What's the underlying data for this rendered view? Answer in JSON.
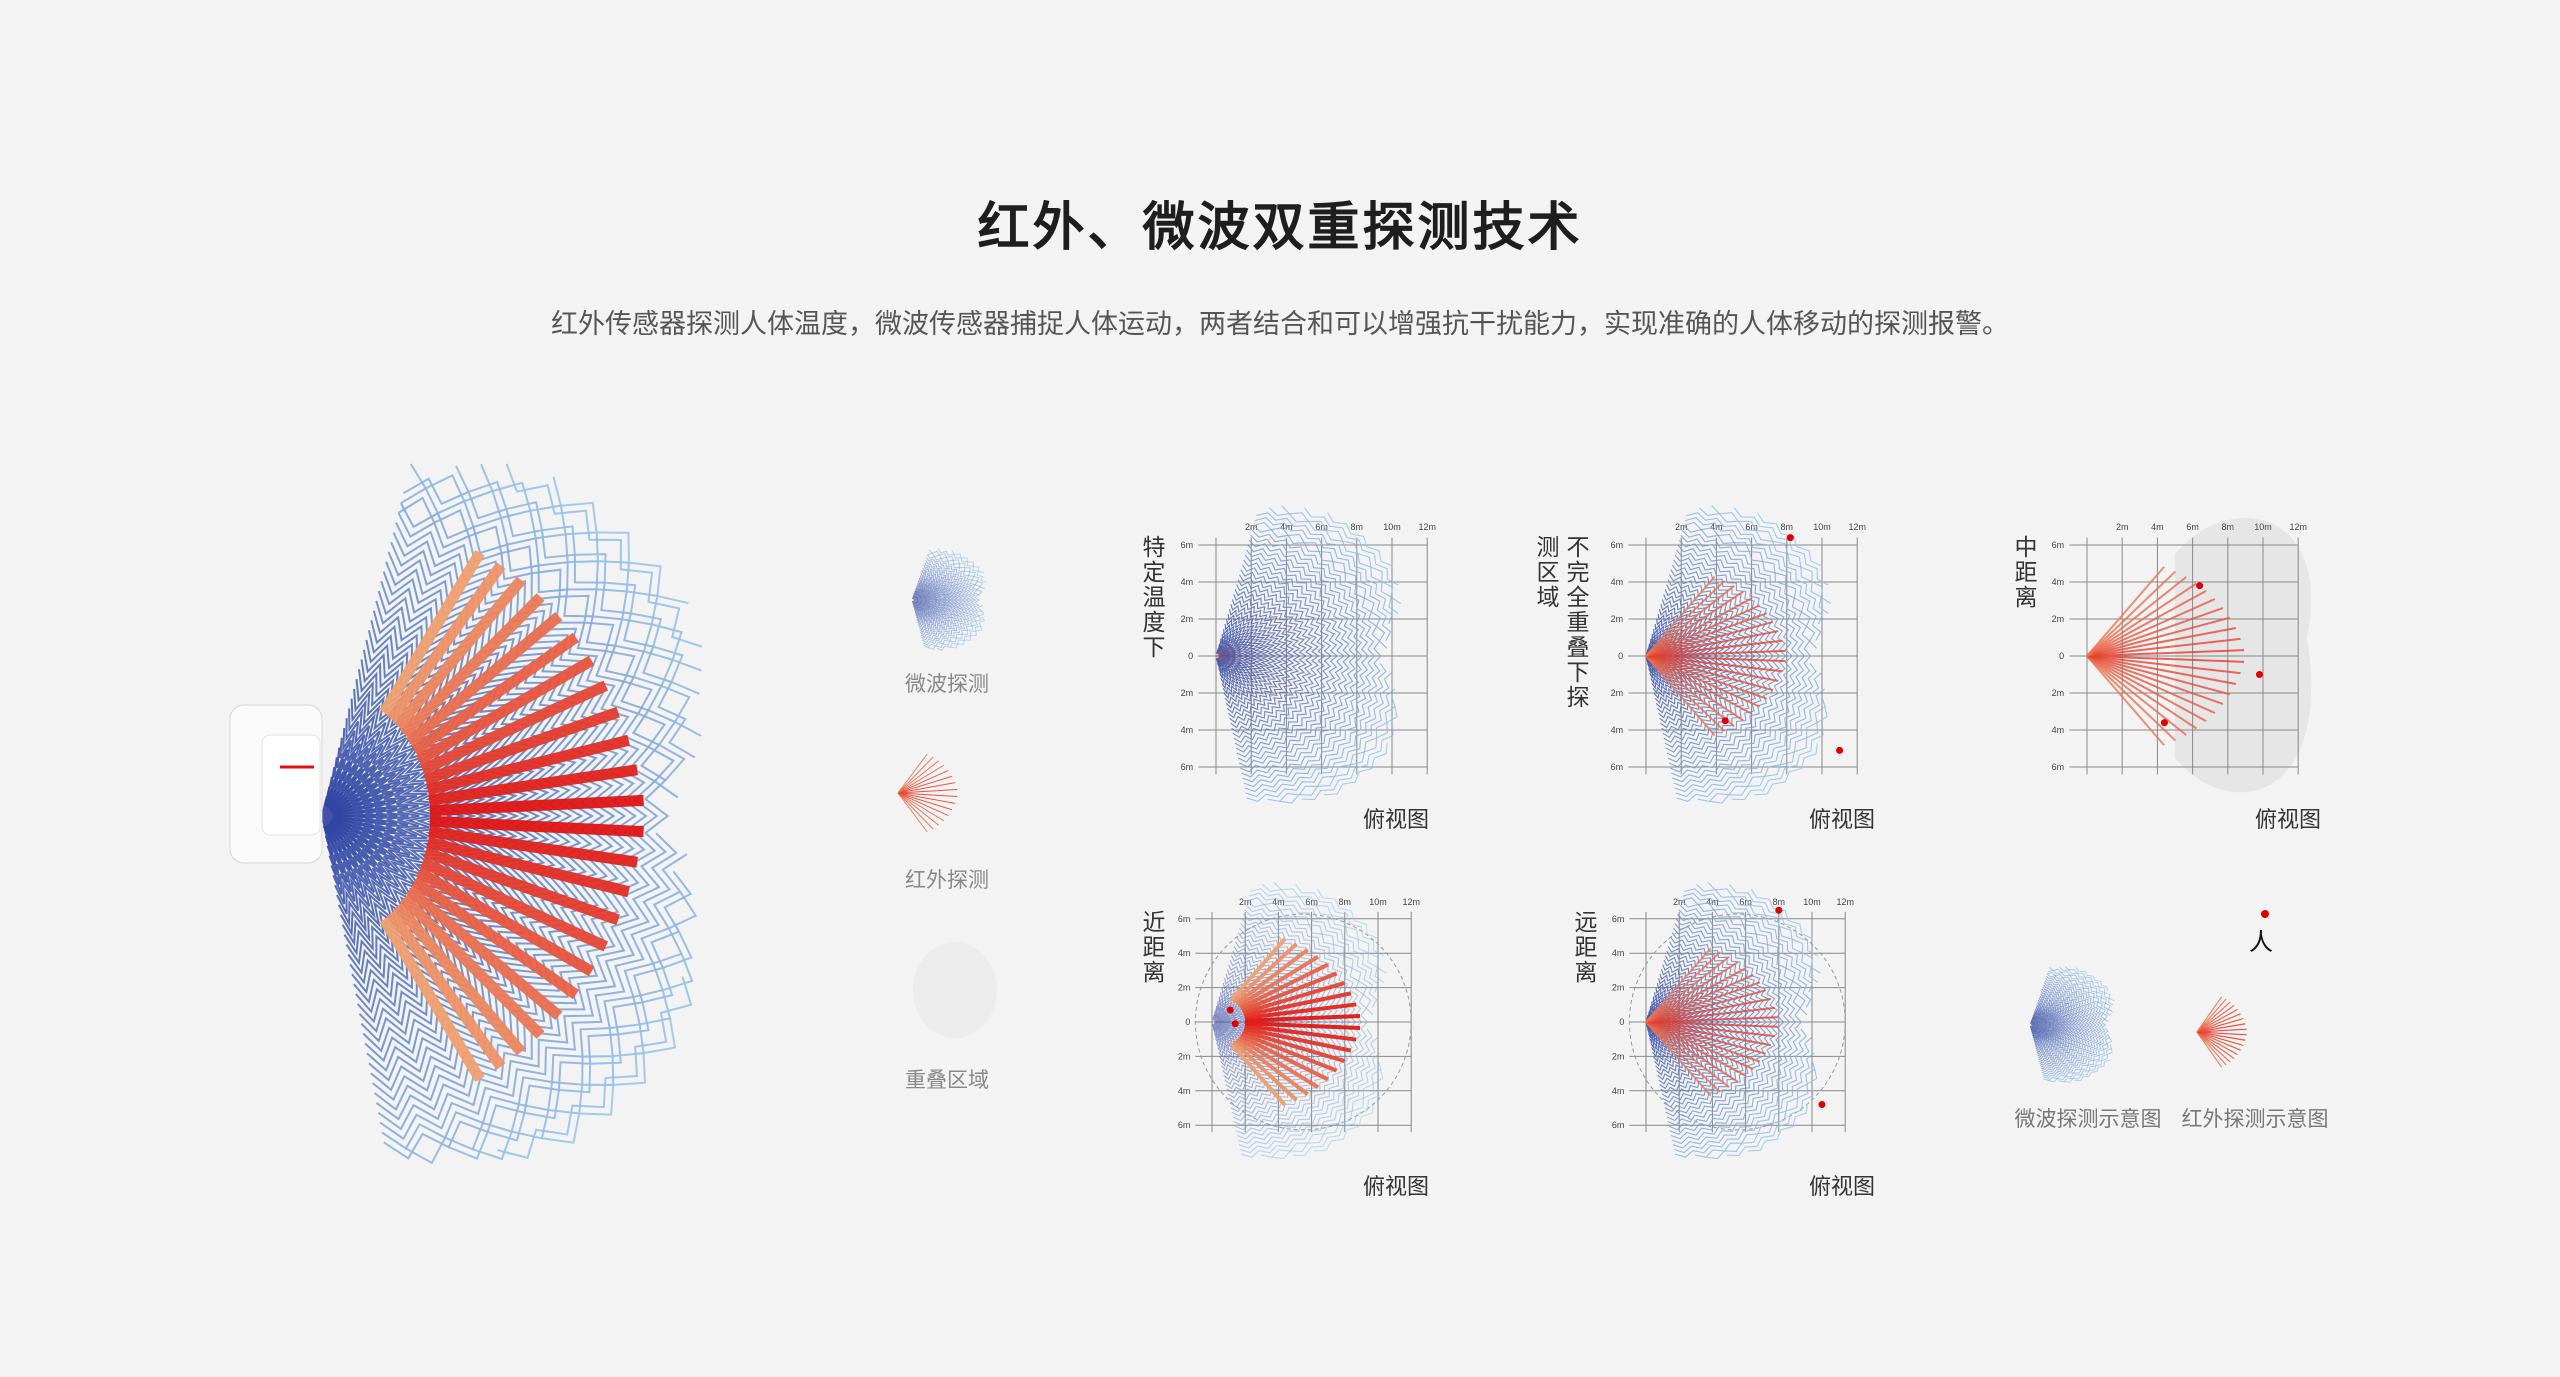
{
  "title": "红外、微波双重探测技术",
  "subtitle": "红外传感器探测人体温度，微波传感器捕捉人体运动，两者结合和可以增强抗干扰能力，实现准确的人体移动的探测报警。",
  "colors": {
    "microwave_dark": "#2a3d9e",
    "microwave_light": "#9cc8ee",
    "infrared_red": "#e01010",
    "infrared_orange": "#f0a070",
    "person": "#e00000",
    "background": "#f3f3f3"
  },
  "legend": [
    {
      "label": "微波探测",
      "icon": "microwave-fan-icon"
    },
    {
      "label": "红外探测",
      "icon": "infrared-rays-icon"
    },
    {
      "label": "重叠区域",
      "icon": "overlap-area-icon"
    }
  ],
  "axis": {
    "x_ticks": [
      "2m",
      "4m",
      "6m",
      "8m",
      "10m",
      "12m"
    ],
    "y_ticks": [
      "6m",
      "4m",
      "2m",
      "0",
      "2m",
      "4m",
      "6m"
    ]
  },
  "charts": [
    {
      "label": "特定温度下",
      "caption": "俯视图",
      "microwave": true,
      "infrared": "faint",
      "overlap_blob": false,
      "range_circle": false,
      "persons": []
    },
    {
      "label": "不完全重叠下探测区域",
      "caption": "俯视图",
      "microwave": true,
      "infrared": "normal",
      "overlap_blob": false,
      "range_circle": false,
      "persons": [
        [
          8.2,
          6.4
        ],
        [
          4.5,
          -3.5
        ],
        [
          11,
          -5.1
        ]
      ]
    },
    {
      "label": "中距离",
      "caption": "俯视图",
      "microwave": false,
      "infrared": "normal",
      "overlap_blob": true,
      "range_circle": false,
      "persons": [
        [
          6.4,
          3.8
        ],
        [
          9.8,
          -1
        ],
        [
          4.4,
          -3.6
        ]
      ]
    },
    {
      "label": "近距离",
      "caption": "俯视图",
      "microwave": true,
      "infrared": "strong",
      "overlap_blob": false,
      "range_circle": true,
      "persons": [
        [
          1.1,
          0.7
        ],
        [
          1.4,
          -0.1
        ]
      ]
    },
    {
      "label": "远距离",
      "caption": "俯视图",
      "microwave": true,
      "infrared": "normal",
      "overlap_blob": false,
      "range_circle": true,
      "persons": [
        [
          8,
          6.5
        ],
        [
          10.6,
          -4.8
        ]
      ]
    }
  ],
  "key": {
    "person_label": "人",
    "microwave_label": "微波探测示意图",
    "infrared_label": "红外探测示意图"
  }
}
